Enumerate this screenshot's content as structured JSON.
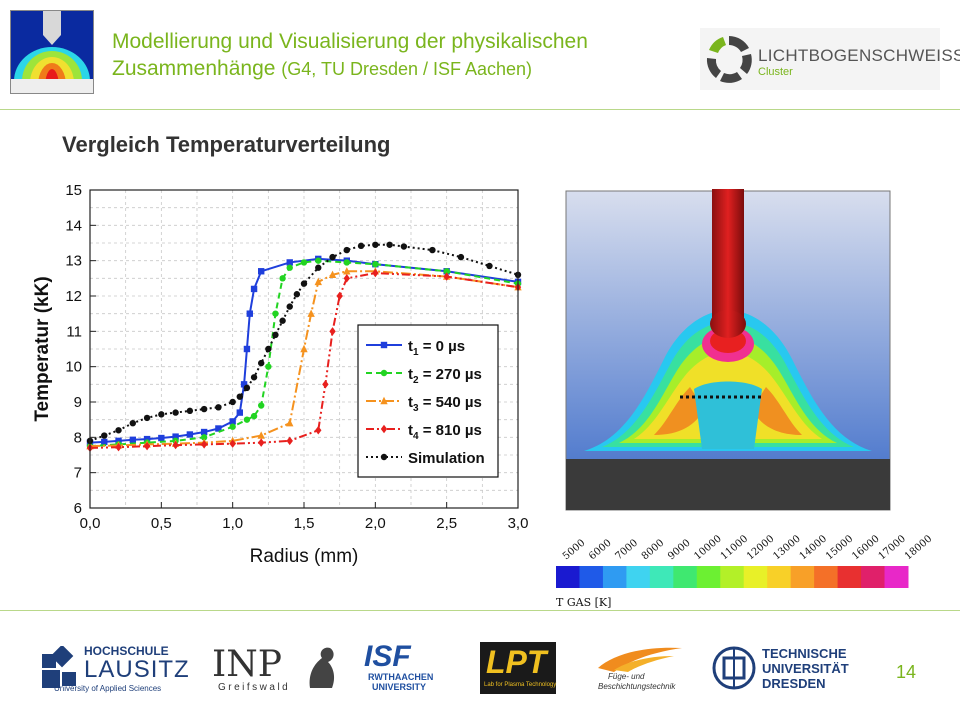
{
  "header": {
    "title": "Modellierung und Visualisierung der physikalischen",
    "title_line2": "Zusammenhänge",
    "subtitle_detail": "(G4, TU Dresden / ISF Aachen)",
    "logo_name": "LICHTBOGENSCHWEISSEN",
    "logo_sub": "Cluster"
  },
  "section_title": "Vergleich Temperaturverteilung",
  "chart_data": {
    "type": "line",
    "xlabel": "Radius (mm)",
    "ylabel": "Temperatur (kK)",
    "xlim": [
      0,
      3
    ],
    "ylim": [
      6,
      15
    ],
    "x_ticks": [
      "0,0",
      "0,5",
      "1,0",
      "1,5",
      "2,0",
      "2,5",
      "3,0"
    ],
    "y_ticks": [
      "6",
      "7",
      "8",
      "9",
      "10",
      "11",
      "12",
      "13",
      "14",
      "15"
    ],
    "grid": true,
    "legend_position": "center-right",
    "series": [
      {
        "name": "t1 = 0 µs",
        "label_main": "t",
        "label_sub": "1",
        "label_rest": " = 0 µs",
        "color": "#1f3fdc",
        "marker": "square",
        "dash": "solid",
        "x": [
          0.0,
          0.1,
          0.2,
          0.3,
          0.4,
          0.5,
          0.6,
          0.7,
          0.8,
          0.9,
          1.0,
          1.05,
          1.08,
          1.1,
          1.12,
          1.15,
          1.2,
          1.4,
          1.6,
          1.8,
          2.0,
          2.5,
          3.0
        ],
        "y": [
          7.85,
          7.87,
          7.9,
          7.93,
          7.95,
          7.98,
          8.02,
          8.08,
          8.15,
          8.25,
          8.45,
          8.7,
          9.5,
          10.5,
          11.5,
          12.2,
          12.7,
          12.95,
          13.05,
          13.0,
          12.9,
          12.7,
          12.4
        ]
      },
      {
        "name": "t2 = 270 µs",
        "label_main": "t",
        "label_sub": "2",
        "label_rest": " = 270 µs",
        "color": "#22d422",
        "marker": "circle",
        "dash": "6,4",
        "x": [
          0.0,
          0.2,
          0.4,
          0.6,
          0.8,
          1.0,
          1.1,
          1.15,
          1.2,
          1.25,
          1.3,
          1.35,
          1.4,
          1.5,
          1.6,
          1.8,
          2.0,
          2.5,
          3.0
        ],
        "y": [
          7.75,
          7.8,
          7.85,
          7.9,
          8.0,
          8.3,
          8.5,
          8.6,
          8.9,
          10.0,
          11.5,
          12.5,
          12.8,
          12.95,
          13.0,
          12.95,
          12.9,
          12.7,
          12.35
        ]
      },
      {
        "name": "t3 = 540 µs",
        "label_main": "t",
        "label_sub": "3",
        "label_rest": " = 540 µs",
        "color": "#f5921e",
        "marker": "triangle",
        "dash": "10,3,2,3",
        "x": [
          0.0,
          0.2,
          0.4,
          0.6,
          0.8,
          1.0,
          1.2,
          1.4,
          1.5,
          1.55,
          1.6,
          1.7,
          1.8,
          2.0,
          2.5,
          3.0
        ],
        "y": [
          7.75,
          7.77,
          7.8,
          7.82,
          7.85,
          7.9,
          8.05,
          8.4,
          10.5,
          11.5,
          12.4,
          12.6,
          12.7,
          12.7,
          12.55,
          12.25
        ]
      },
      {
        "name": "t4 = 810 µs",
        "label_main": "t",
        "label_sub": "4",
        "label_rest": " = 810 µs",
        "color": "#e8201e",
        "marker": "diamond",
        "dash": "8,3,2,3,2,3",
        "x": [
          0.0,
          0.2,
          0.4,
          0.6,
          0.8,
          1.0,
          1.2,
          1.4,
          1.6,
          1.65,
          1.7,
          1.75,
          1.8,
          2.0,
          2.5,
          3.0
        ],
        "y": [
          7.7,
          7.72,
          7.75,
          7.78,
          7.8,
          7.82,
          7.85,
          7.9,
          8.2,
          9.5,
          11.0,
          12.0,
          12.5,
          12.65,
          12.55,
          12.25
        ]
      },
      {
        "name": "Simulation",
        "label_main": "Simulation",
        "label_sub": "",
        "label_rest": "",
        "color": "#111111",
        "marker": "circle",
        "dash": "2,3",
        "x": [
          0.0,
          0.1,
          0.2,
          0.3,
          0.4,
          0.5,
          0.6,
          0.7,
          0.8,
          0.9,
          1.0,
          1.05,
          1.1,
          1.15,
          1.2,
          1.25,
          1.3,
          1.35,
          1.4,
          1.45,
          1.5,
          1.6,
          1.7,
          1.8,
          1.9,
          2.0,
          2.1,
          2.2,
          2.4,
          2.6,
          2.8,
          3.0
        ],
        "y": [
          7.9,
          8.05,
          8.2,
          8.4,
          8.55,
          8.65,
          8.7,
          8.75,
          8.8,
          8.85,
          9.0,
          9.15,
          9.4,
          9.7,
          10.1,
          10.5,
          10.9,
          11.3,
          11.7,
          12.05,
          12.35,
          12.8,
          13.1,
          13.3,
          13.42,
          13.45,
          13.45,
          13.4,
          13.3,
          13.1,
          12.85,
          12.6
        ]
      }
    ]
  },
  "colorbar": {
    "ticks": [
      "5000",
      "6000",
      "7000",
      "8000",
      "9000",
      "10000",
      "11000",
      "12000",
      "13000",
      "14000",
      "15000",
      "16000",
      "17000",
      "18000"
    ],
    "label": "T GAS [K]",
    "colors": [
      "#1a1ad0",
      "#1f5ae8",
      "#2f9bf2",
      "#3fd3f0",
      "#3ee8b8",
      "#3fe870",
      "#6cf032",
      "#b3f028",
      "#e8f028",
      "#f8d028",
      "#f8a028",
      "#f47028",
      "#e83030",
      "#e0206a",
      "#e828c8"
    ]
  },
  "footer": {
    "page_number": "14",
    "logo1": [
      "HOCHSCHULE",
      "LAUSITZ",
      "University of Applied Sciences"
    ],
    "logo2": [
      "INP",
      "Greifswald"
    ],
    "logo3": [
      "ISF",
      "RWTHAACHEN",
      "UNIVERSITY"
    ],
    "logo4": [
      "LPT",
      "Lab for Plasma Technology"
    ],
    "logo5": [
      "Füge- und",
      "Beschichtungstechnik"
    ],
    "logo6": [
      "TECHNISCHE",
      "UNIVERSITÄT",
      "DRESDEN"
    ]
  }
}
